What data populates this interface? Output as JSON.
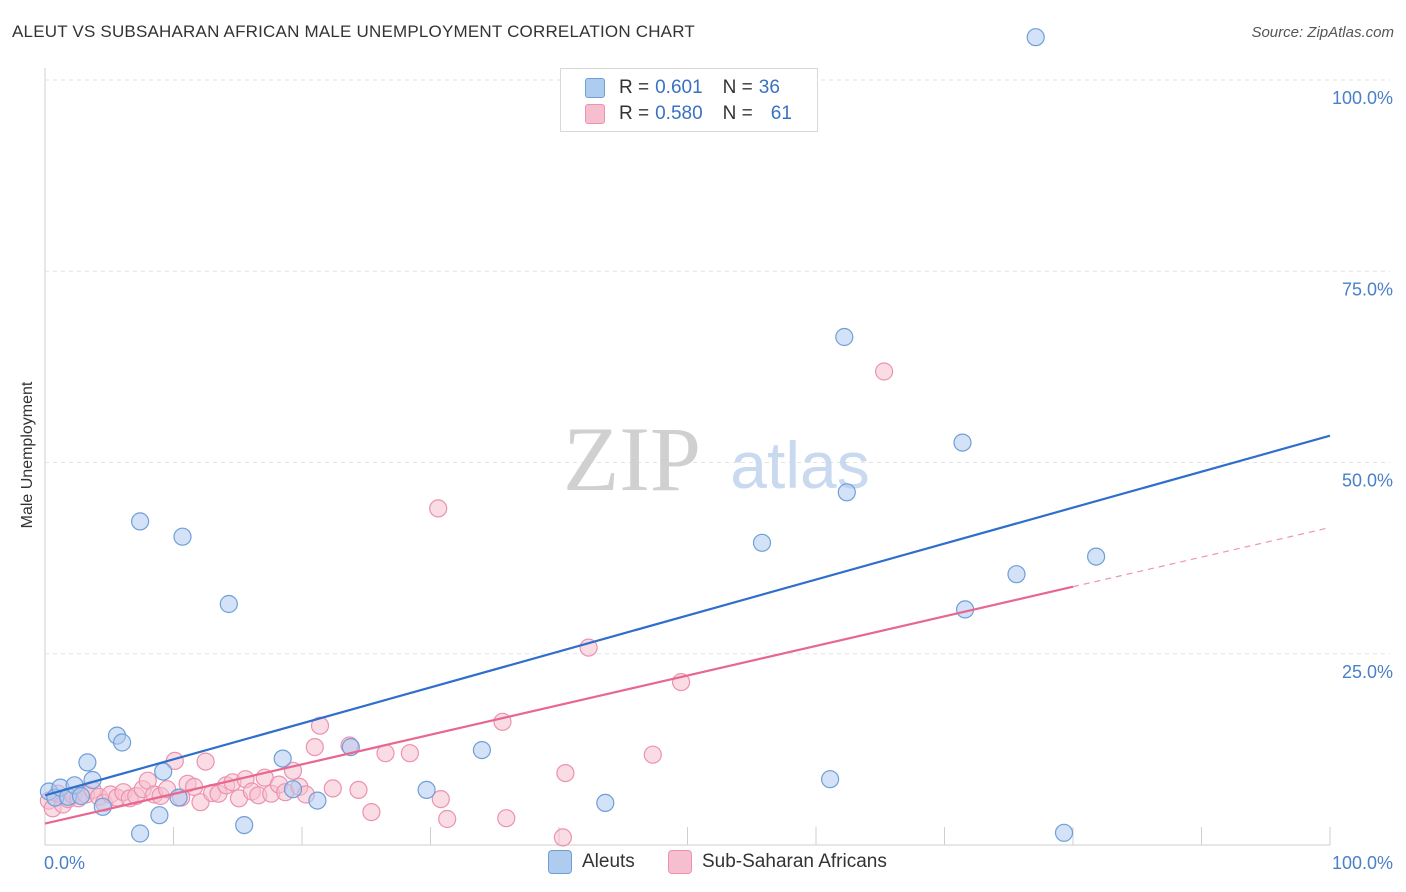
{
  "header": {
    "title": "ALEUT VS SUBSAHARAN AFRICAN MALE UNEMPLOYMENT CORRELATION CHART",
    "source": "Source: ZipAtlas.com"
  },
  "colors": {
    "aleut_fill": "#aecbf0",
    "aleut_stroke": "#6f9fd8",
    "aleut_line": "#2f6fcb",
    "african_fill": "#f6bfd0",
    "african_stroke": "#ec92b0",
    "african_line": "#e8678f",
    "grid": "#e3e3e3",
    "axis_text": "#4a80c8"
  },
  "legend": {
    "rows": [
      {
        "r_label": "R =",
        "r_value": "0.601",
        "n_label": "N =",
        "n_value": "36"
      },
      {
        "r_label": "R =",
        "r_value": "0.580",
        "n_label": "N =",
        "n_value": "61"
      }
    ]
  },
  "watermark": {
    "zip": "ZIP",
    "atlas": "atlas"
  },
  "chart_data": {
    "type": "scatter",
    "title": "ALEUT VS SUBSAHARAN AFRICAN MALE UNEMPLOYMENT CORRELATION CHART",
    "xlabel": "",
    "ylabel": "Male Unemployment",
    "xlim": [
      0,
      100
    ],
    "ylim": [
      0,
      100
    ],
    "x_ticks": [
      "0.0%",
      "100.0%"
    ],
    "y_ticks": [
      {
        "value": 25,
        "label": "25.0%"
      },
      {
        "value": 50,
        "label": "50.0%"
      },
      {
        "value": 75,
        "label": "75.0%"
      },
      {
        "value": 100,
        "label": "100.0%"
      }
    ],
    "grid": true,
    "legend_position": "top-center",
    "series": [
      {
        "name": "Aleuts",
        "trendline": {
          "x0": 0,
          "y0": 6.5,
          "x1": 100,
          "y1": 53.5,
          "dashed_from": null
        },
        "points": [
          [
            0.3,
            7
          ],
          [
            0.8,
            6.2
          ],
          [
            1.2,
            7.5
          ],
          [
            1.8,
            6.3
          ],
          [
            2.3,
            7.8
          ],
          [
            2.8,
            6.4
          ],
          [
            3.3,
            10.8
          ],
          [
            3.7,
            8.5
          ],
          [
            4.5,
            5
          ],
          [
            5.6,
            14.3
          ],
          [
            6.0,
            13.4
          ],
          [
            7.4,
            1.5
          ],
          [
            7.4,
            42.3
          ],
          [
            8.9,
            3.9
          ],
          [
            9.2,
            9.6
          ],
          [
            10.4,
            6.2
          ],
          [
            10.7,
            40.3
          ],
          [
            14.3,
            31.5
          ],
          [
            15.5,
            2.6
          ],
          [
            18.5,
            11.3
          ],
          [
            19.3,
            7.3
          ],
          [
            21.2,
            5.8
          ],
          [
            23.8,
            12.8
          ],
          [
            29.7,
            7.2
          ],
          [
            34.0,
            12.4
          ],
          [
            43.6,
            5.5
          ],
          [
            55.8,
            39.5
          ],
          [
            61.1,
            8.6
          ],
          [
            62.2,
            66.4
          ],
          [
            62.4,
            46.1
          ],
          [
            71.4,
            52.6
          ],
          [
            71.6,
            30.8
          ],
          [
            75.6,
            35.4
          ],
          [
            77.1,
            105.6
          ],
          [
            79.3,
            1.6
          ],
          [
            81.8,
            37.7
          ]
        ]
      },
      {
        "name": "Sub-Saharan Africans",
        "trendline": {
          "x0": 0,
          "y0": 2.8,
          "x1": 100,
          "y1": 41.5,
          "dashed_from": 80
        },
        "points": [
          [
            0.3,
            5.8
          ],
          [
            0.6,
            4.8
          ],
          [
            1.0,
            6.7
          ],
          [
            1.4,
            5.3
          ],
          [
            1.8,
            6.0
          ],
          [
            2.2,
            6.5
          ],
          [
            2.6,
            6.1
          ],
          [
            3.2,
            6.6
          ],
          [
            3.7,
            7.2
          ],
          [
            4.2,
            6.3
          ],
          [
            4.6,
            5.5
          ],
          [
            5.1,
            6.6
          ],
          [
            5.6,
            6.2
          ],
          [
            6.1,
            6.9
          ],
          [
            6.6,
            6.1
          ],
          [
            7.1,
            6.4
          ],
          [
            7.6,
            7.3
          ],
          [
            8.0,
            8.4
          ],
          [
            8.5,
            6.6
          ],
          [
            9.0,
            6.4
          ],
          [
            9.5,
            7.3
          ],
          [
            10.1,
            11.0
          ],
          [
            10.6,
            6.2
          ],
          [
            11.1,
            8.0
          ],
          [
            11.6,
            7.6
          ],
          [
            12.1,
            5.6
          ],
          [
            12.5,
            10.9
          ],
          [
            13.0,
            6.8
          ],
          [
            13.5,
            6.7
          ],
          [
            14.1,
            7.8
          ],
          [
            14.6,
            8.2
          ],
          [
            15.1,
            6.1
          ],
          [
            15.6,
            8.6
          ],
          [
            16.1,
            7.0
          ],
          [
            16.6,
            6.5
          ],
          [
            17.1,
            8.8
          ],
          [
            17.6,
            6.7
          ],
          [
            18.2,
            7.9
          ],
          [
            18.7,
            6.9
          ],
          [
            19.3,
            9.7
          ],
          [
            19.8,
            7.6
          ],
          [
            20.3,
            6.6
          ],
          [
            21.0,
            12.8
          ],
          [
            21.4,
            15.6
          ],
          [
            22.4,
            7.4
          ],
          [
            23.7,
            13.0
          ],
          [
            24.4,
            7.2
          ],
          [
            25.4,
            4.3
          ],
          [
            26.5,
            12.0
          ],
          [
            28.4,
            12.0
          ],
          [
            30.6,
            44.0
          ],
          [
            30.8,
            6.0
          ],
          [
            31.3,
            3.4
          ],
          [
            35.6,
            16.1
          ],
          [
            35.9,
            3.5
          ],
          [
            40.3,
            1.0
          ],
          [
            40.5,
            9.4
          ],
          [
            42.3,
            25.8
          ],
          [
            47.3,
            11.8
          ],
          [
            49.5,
            21.3
          ],
          [
            65.3,
            61.9
          ]
        ]
      }
    ]
  },
  "bottom_legend": {
    "aleuts": "Aleuts",
    "africans": "Sub-Saharan Africans"
  }
}
